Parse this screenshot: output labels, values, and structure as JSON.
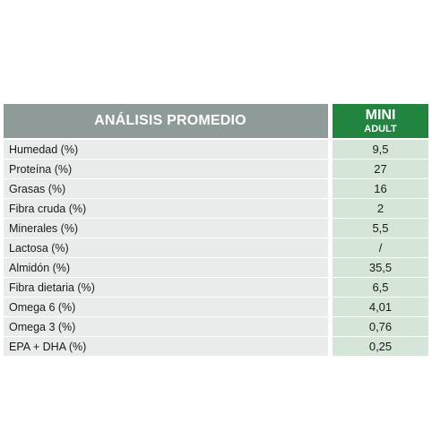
{
  "table": {
    "header_label": "ANÁLISIS PROMEDIO",
    "column": {
      "line1": "MINI",
      "line2": "ADULT"
    },
    "rows": [
      {
        "label": "Humedad (%)",
        "value": "9,5"
      },
      {
        "label": "Proteína (%)",
        "value": "27"
      },
      {
        "label": "Grasas (%)",
        "value": "16"
      },
      {
        "label": "Fibra cruda (%)",
        "value": "2"
      },
      {
        "label": "Minerales (%)",
        "value": "5,5"
      },
      {
        "label": "Lactosa (%)",
        "value": "/"
      },
      {
        "label": "Almidón (%)",
        "value": "35,5"
      },
      {
        "label": "Fibra dietaria (%)",
        "value": "6,5"
      },
      {
        "label": "Omega 6 (%)",
        "value": "4,01"
      },
      {
        "label": "Omega 3 (%)",
        "value": "0,76"
      },
      {
        "label": "EPA + DHA (%)",
        "value": "0,25"
      }
    ],
    "colors": {
      "header_gray": "#8e9b98",
      "header_green": "#21843f",
      "row_gray": "#eaeceb",
      "row_green": "#d5e6d8"
    }
  }
}
